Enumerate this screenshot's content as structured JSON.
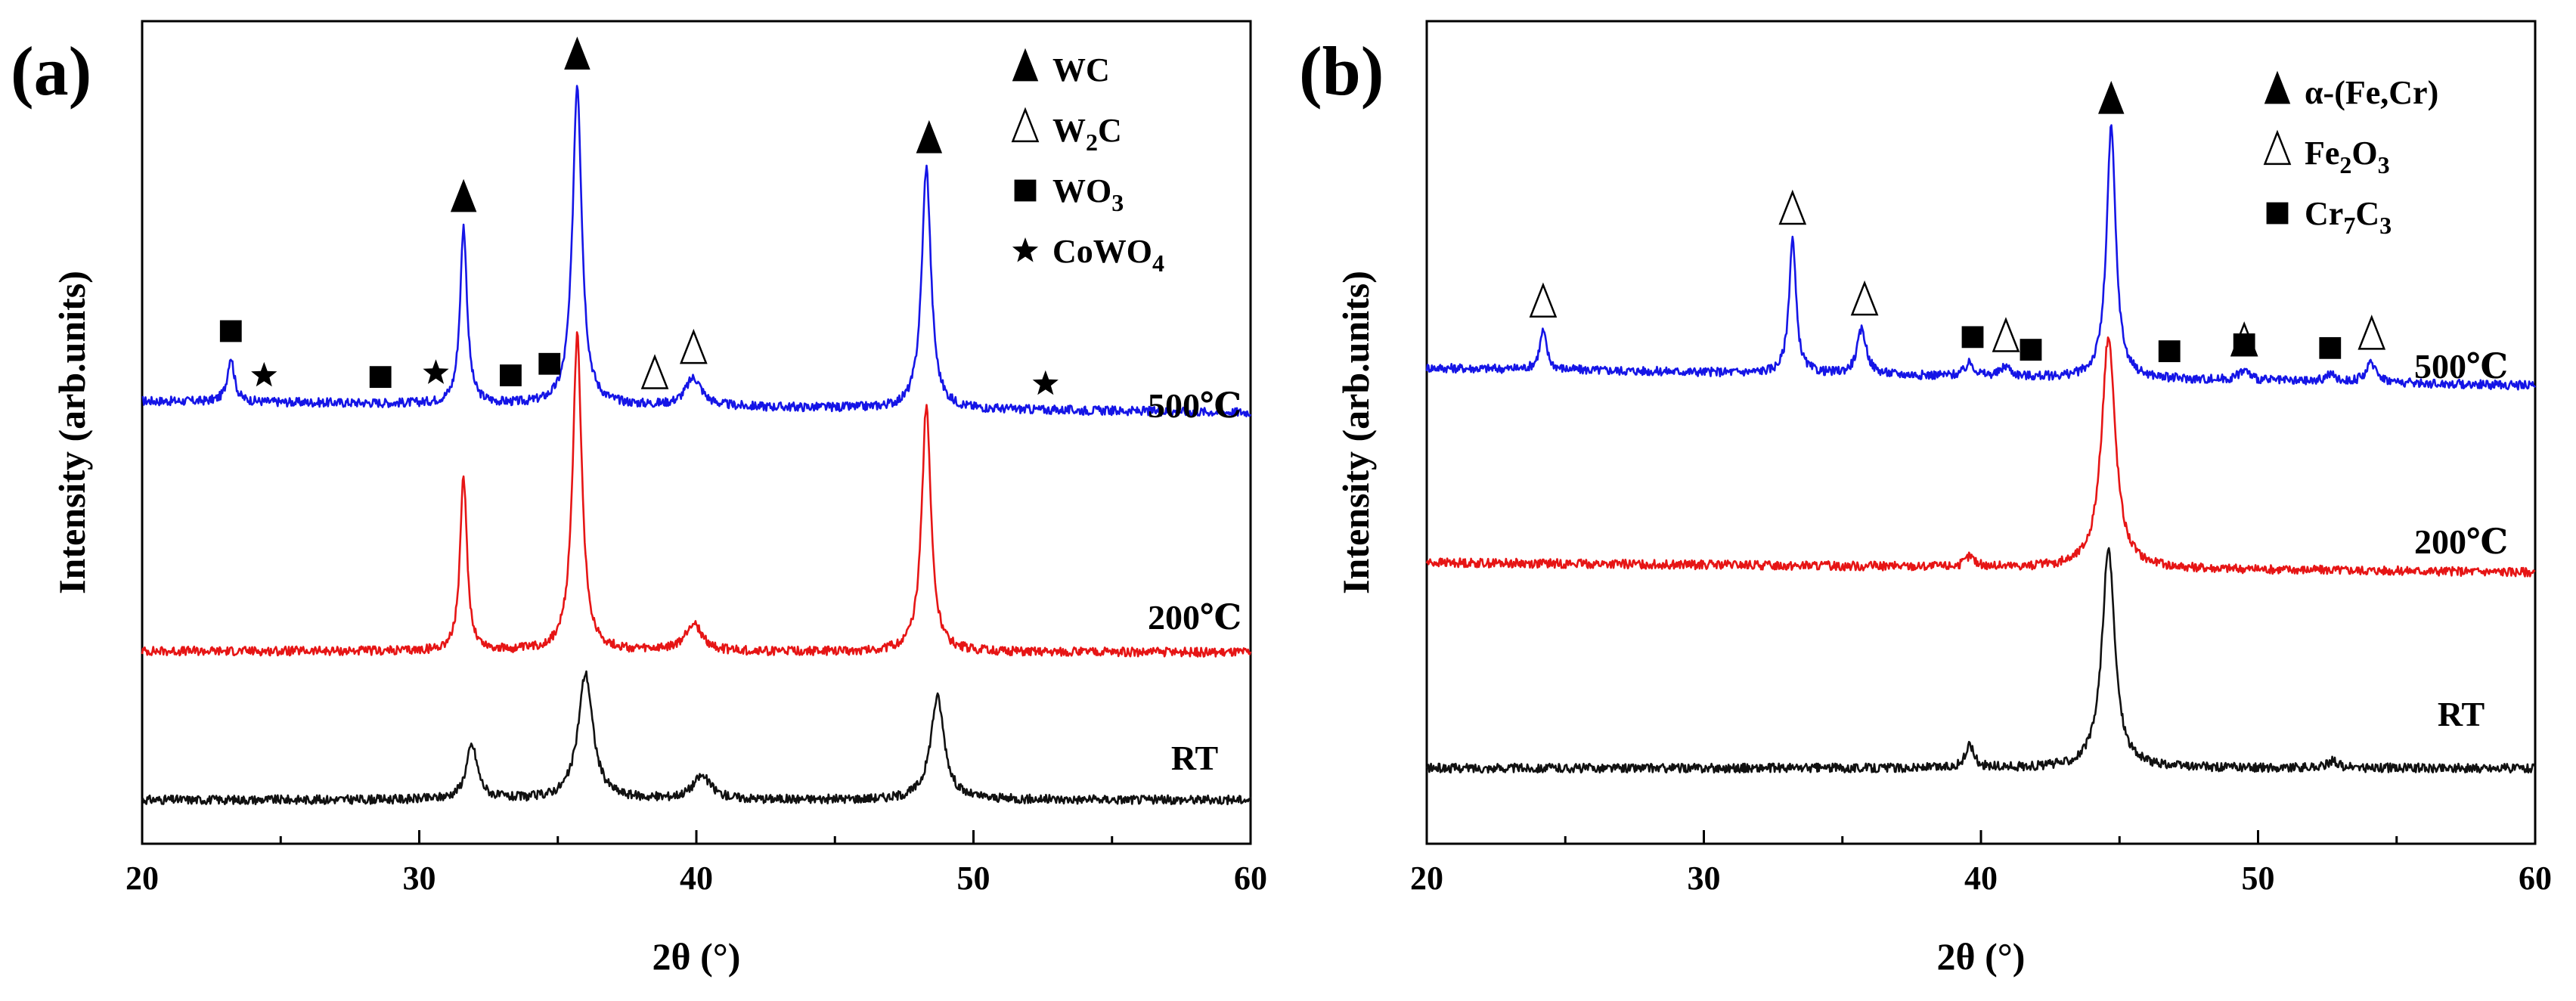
{
  "chart_data": [
    {
      "type": "line",
      "panel_label": "(a)",
      "xlabel": "2θ (°)",
      "ylabel": "Intensity (arb.units)",
      "xlim": [
        20,
        60
      ],
      "x_ticks": [
        "20",
        "30",
        "40",
        "50",
        "60"
      ],
      "series": [
        {
          "name": "500℃",
          "color": "#1515e6",
          "baseline": 35,
          "peaks": [
            [
              23.2,
              35,
              0.15
            ],
            [
              31.6,
              138,
              0.15
            ],
            [
              35.7,
              250,
              0.2
            ],
            [
              39.9,
              22,
              0.35
            ],
            [
              48.3,
              188,
              0.2
            ]
          ]
        },
        {
          "name": "200℃",
          "color": "#e61515",
          "baseline": 4,
          "peaks": [
            [
              31.6,
              135,
              0.15
            ],
            [
              35.7,
              245,
              0.2
            ],
            [
              39.9,
              22,
              0.35
            ],
            [
              48.3,
              192,
              0.2
            ]
          ]
        },
        {
          "name": "RT",
          "color": "#111111",
          "baseline": 0,
          "peaks": [
            [
              31.9,
              42,
              0.25
            ],
            [
              36.0,
              98,
              0.32
            ],
            [
              40.2,
              18,
              0.4
            ],
            [
              48.7,
              80,
              0.3
            ]
          ]
        }
      ],
      "peak_markers": [
        {
          "phase": "WC",
          "symbol": "filled-triangle",
          "x": [
            31.6,
            35.7,
            48.4
          ]
        },
        {
          "phase": "W2C",
          "symbol": "open-triangle",
          "x": [
            38.5,
            39.9
          ]
        },
        {
          "phase": "WO3",
          "symbol": "filled-square",
          "x": [
            23.2,
            28.6,
            33.3,
            34.7
          ]
        },
        {
          "phase": "CoWO4",
          "symbol": "star",
          "x": [
            24.4,
            30.6,
            52.6
          ]
        }
      ],
      "legend": [
        {
          "symbol": "filled-triangle",
          "label": "WC",
          "sub": "",
          "tail": ""
        },
        {
          "symbol": "open-triangle",
          "label": "W",
          "sub": "2",
          "tail": "C"
        },
        {
          "symbol": "filled-square",
          "label": "WO",
          "sub": "3",
          "tail": ""
        },
        {
          "symbol": "star",
          "label": "CoWO",
          "sub": "4",
          "tail": ""
        }
      ]
    },
    {
      "type": "line",
      "panel_label": "(b)",
      "xlabel": "2θ (°)",
      "ylabel": "Intensity (arb.units)",
      "xlim": [
        20,
        60
      ],
      "x_ticks": [
        "20",
        "30",
        "40",
        "50",
        "60"
      ],
      "series": [
        {
          "name": "500℃",
          "color": "#1515e6",
          "baseline": 55,
          "peaks": [
            [
              24.2,
              30,
              0.15
            ],
            [
              33.2,
              105,
              0.15
            ],
            [
              35.7,
              35,
              0.2
            ],
            [
              39.6,
              10,
              0.2
            ],
            [
              40.9,
              8,
              0.2
            ],
            [
              44.7,
              195,
              0.2
            ],
            [
              49.5,
              8,
              0.25
            ],
            [
              52.6,
              6,
              0.2
            ],
            [
              54.1,
              15,
              0.25
            ]
          ]
        },
        {
          "name": "200℃",
          "color": "#e61515",
          "baseline": 30,
          "peaks": [
            [
              39.6,
              8,
              0.2
            ],
            [
              44.6,
              180,
              0.3
            ]
          ]
        },
        {
          "name": "RT",
          "color": "#111111",
          "baseline": 0,
          "peaks": [
            [
              39.6,
              18,
              0.18
            ],
            [
              44.6,
              170,
              0.28
            ],
            [
              52.7,
              6,
              0.2
            ]
          ]
        }
      ],
      "peak_markers": [
        {
          "phase": "α-(Fe,Cr)",
          "symbol": "filled-triangle",
          "x": [
            44.7
          ]
        },
        {
          "phase": "Fe2O3",
          "symbol": "open-triangle",
          "x": [
            24.2,
            33.2,
            35.8,
            40.9,
            49.5,
            54.1
          ]
        },
        {
          "phase": "Cr7C3",
          "symbol": "filled-square",
          "x": [
            39.7,
            41.8,
            46.8,
            49.5,
            52.6
          ]
        }
      ],
      "legend": [
        {
          "symbol": "filled-triangle",
          "label": "α-(Fe,Cr)",
          "sub": "",
          "tail": ""
        },
        {
          "symbol": "open-triangle",
          "label": "Fe",
          "sub": "2",
          "tail": "O",
          "sub2": "3"
        },
        {
          "symbol": "filled-square",
          "label": "Cr",
          "sub": "7",
          "tail": "C",
          "sub2": "3"
        }
      ]
    }
  ]
}
